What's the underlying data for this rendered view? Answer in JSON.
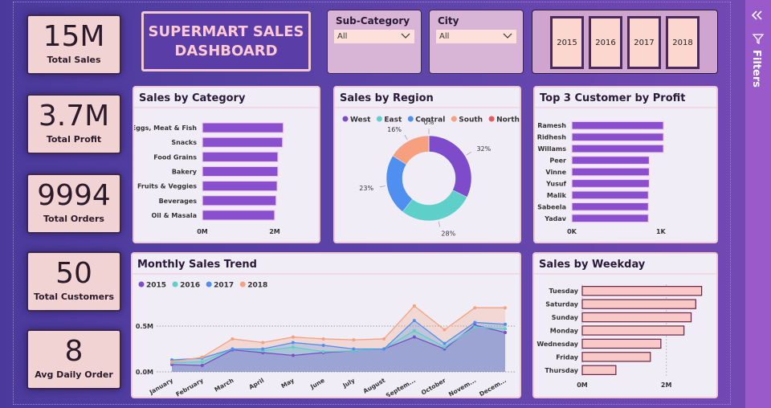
{
  "header": {
    "title": "SUPERMART SALES DASHBOARD"
  },
  "kpis": [
    {
      "value": "15M",
      "label": "Total Sales"
    },
    {
      "value": "3.7M",
      "label": "Total Profit"
    },
    {
      "value": "9994",
      "label": "Total Orders"
    },
    {
      "value": "50",
      "label": "Total Customers"
    },
    {
      "value": "8",
      "label": "Avg Daily Order"
    }
  ],
  "filters": [
    {
      "label": "Sub-Category",
      "selected": "All"
    },
    {
      "label": "City",
      "selected": "All"
    }
  ],
  "years": [
    "2015",
    "2016",
    "2017",
    "2018"
  ],
  "side_pane": {
    "label": "Filters"
  },
  "chart_data": [
    {
      "type": "bar",
      "orientation": "horizontal",
      "title": "Sales by Category",
      "categories": [
        "Eggs, Meat & Fish",
        "Snacks",
        "Food Grains",
        "Bakery",
        "Fruits & Veggies",
        "Beverages",
        "Oil & Masala"
      ],
      "values": [
        2.24,
        2.22,
        2.09,
        2.09,
        2.07,
        2.04,
        2.0
      ],
      "color": "#8a4fcf",
      "border_color": "#f3cde6",
      "xlim": [
        0,
        2.6
      ],
      "xticks": [
        {
          "value": 0,
          "label": "0M"
        },
        {
          "value": 2,
          "label": "2M"
        }
      ],
      "grid": false
    },
    {
      "type": "pie",
      "donut": true,
      "title": "Sales by Region",
      "categories": [
        "West",
        "East",
        "Central",
        "South",
        "North"
      ],
      "values": [
        32,
        28,
        23,
        16,
        0
      ],
      "value_labels": [
        "32%",
        "28%",
        "23%",
        "16%",
        "0%"
      ],
      "colors": [
        "#7e4ccb",
        "#5ecfc9",
        "#4e8ff0",
        "#f7a07f",
        "#e8595f"
      ],
      "legend": "top-left"
    },
    {
      "type": "bar",
      "orientation": "horizontal",
      "title": "Top 3 Customer by Profit",
      "categories": [
        "Ramesh",
        "Ridhesh",
        "Willams",
        "Peer",
        "Vinne",
        "Yusuf",
        "Malik",
        "Sabeela",
        "Yadav"
      ],
      "values": [
        1.03,
        1.03,
        1.03,
        0.87,
        0.87,
        0.87,
        0.86,
        0.86,
        0.86
      ],
      "color": "#8a4fcf",
      "border_color": "#f3cde6",
      "xlim": [
        0,
        1.2
      ],
      "xticks": [
        {
          "value": 0,
          "label": "0K"
        },
        {
          "value": 1,
          "label": "1K"
        }
      ],
      "grid": false
    },
    {
      "type": "line",
      "title": "Monthly Sales Trend",
      "categories": [
        "January",
        "February",
        "March",
        "April",
        "May",
        "June",
        "July",
        "August",
        "Septem...",
        "October",
        "Novem...",
        "Decem..."
      ],
      "series": [
        {
          "name": "2015",
          "color": "#7e4ccb",
          "values": [
            0.08,
            0.07,
            0.24,
            0.21,
            0.18,
            0.21,
            0.23,
            0.25,
            0.38,
            0.25,
            0.51,
            0.43
          ]
        },
        {
          "name": "2016",
          "color": "#5ecfc9",
          "values": [
            0.1,
            0.11,
            0.25,
            0.23,
            0.27,
            0.22,
            0.23,
            0.25,
            0.45,
            0.27,
            0.49,
            0.47
          ]
        },
        {
          "name": "2017",
          "color": "#4e8ff0",
          "values": [
            0.13,
            0.15,
            0.25,
            0.25,
            0.32,
            0.29,
            0.25,
            0.25,
            0.56,
            0.31,
            0.54,
            0.52
          ]
        },
        {
          "name": "2018",
          "color": "#f7a07f",
          "values": [
            0.11,
            0.16,
            0.36,
            0.32,
            0.38,
            0.36,
            0.35,
            0.36,
            0.72,
            0.46,
            0.7,
            0.7
          ]
        }
      ],
      "ylim": [
        0,
        0.75
      ],
      "yticks": [
        {
          "value": 0,
          "label": "0.0M"
        },
        {
          "value": 0.5,
          "label": "0.5M"
        }
      ],
      "grid": true,
      "legend": "top-left"
    },
    {
      "type": "bar",
      "orientation": "horizontal",
      "title": "Sales by Weekday",
      "categories": [
        "Tuesday",
        "Saturday",
        "Sunday",
        "Monday",
        "Wednesday",
        "Friday",
        "Thursday"
      ],
      "values": [
        2.84,
        2.7,
        2.59,
        2.42,
        1.87,
        1.62,
        0.8
      ],
      "color": "#f8c9c6",
      "border_color": "#6b2246",
      "xlim": [
        0,
        3
      ],
      "xticks": [
        {
          "value": 0,
          "label": "0M"
        },
        {
          "value": 2,
          "label": "2M"
        }
      ],
      "grid": true
    }
  ]
}
